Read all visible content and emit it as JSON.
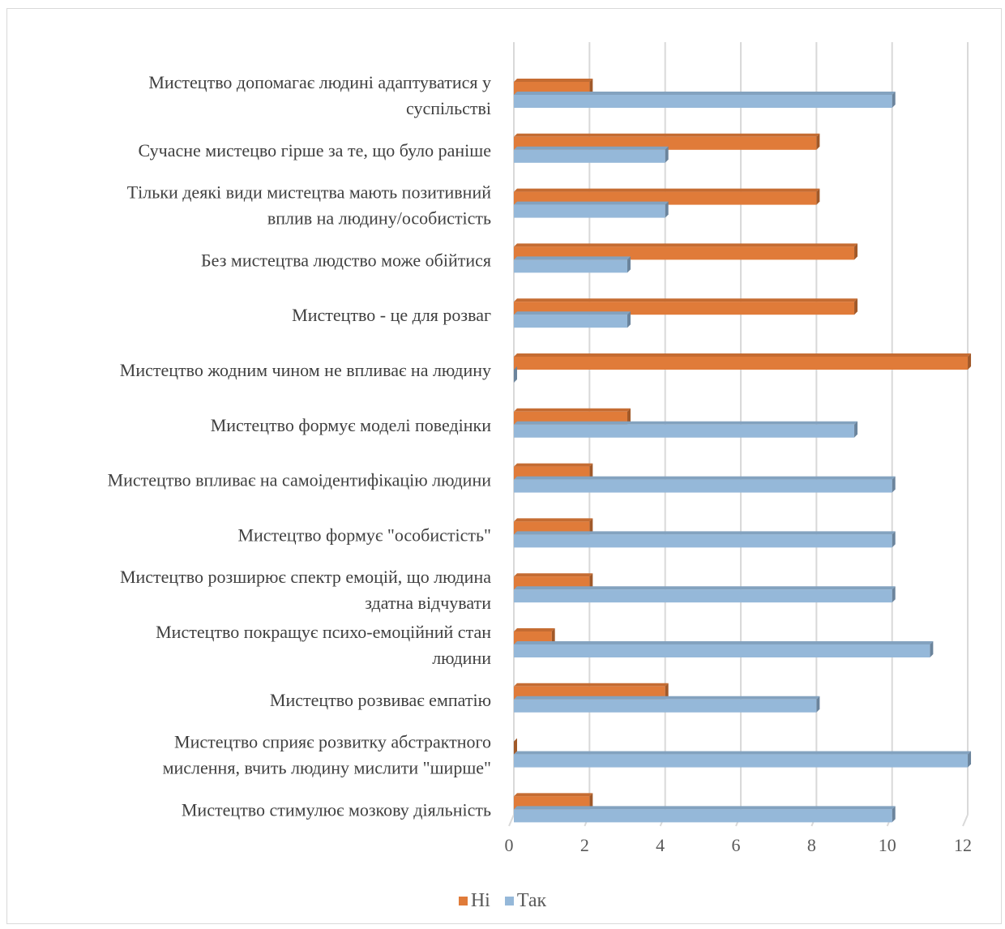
{
  "chart_data": {
    "type": "bar",
    "orientation": "horizontal",
    "categories": [
      [
        "Мистецтво допомагає людині адаптуватися у",
        "суспільстві"
      ],
      [
        "Сучасне мистецво гірше за те, що було раніше"
      ],
      [
        "Тільки деякі види мистецтва мають позитивний",
        "вплив на людину/особистість"
      ],
      [
        "Без мистецтва людство може обійтися"
      ],
      [
        "Мистецтво - це для розваг"
      ],
      [
        "Мистецтво жодним чином не впливає на людину"
      ],
      [
        "Мистецтво формує моделі поведінки"
      ],
      [
        "Мистецтво впливає на самоідентифікацію людини"
      ],
      [
        "Мистецтво формує \"особистість\""
      ],
      [
        "Мистецтво розширює спектр емоцій, що людина",
        "здатна відчувати"
      ],
      [
        "Мистецтво покращує психо-емоційний стан",
        "людини"
      ],
      [
        "Мистецтво розвиває емпатію"
      ],
      [
        "Мистецтво сприяє розвитку абстрактного ",
        "мислення, вчить людину мислити \"ширше\""
      ],
      [
        "Мистецтво стимулює мозкову діяльність"
      ]
    ],
    "series": [
      {
        "name": "Ні",
        "color": "#e07b39",
        "values": [
          2,
          8,
          8,
          9,
          9,
          12,
          3,
          2,
          2,
          2,
          1,
          4,
          0,
          2
        ]
      },
      {
        "name": "Так",
        "color": "#95b8d9",
        "values": [
          10,
          4,
          4,
          3,
          3,
          0,
          9,
          10,
          10,
          10,
          11,
          8,
          12,
          10
        ]
      }
    ],
    "xlim": [
      0,
      12
    ],
    "xticks": [
      "0",
      "2",
      "4",
      "6",
      "8",
      "10",
      "12"
    ],
    "grid": true,
    "legend_position": "bottom",
    "title": "",
    "xlabel": "",
    "ylabel": ""
  }
}
